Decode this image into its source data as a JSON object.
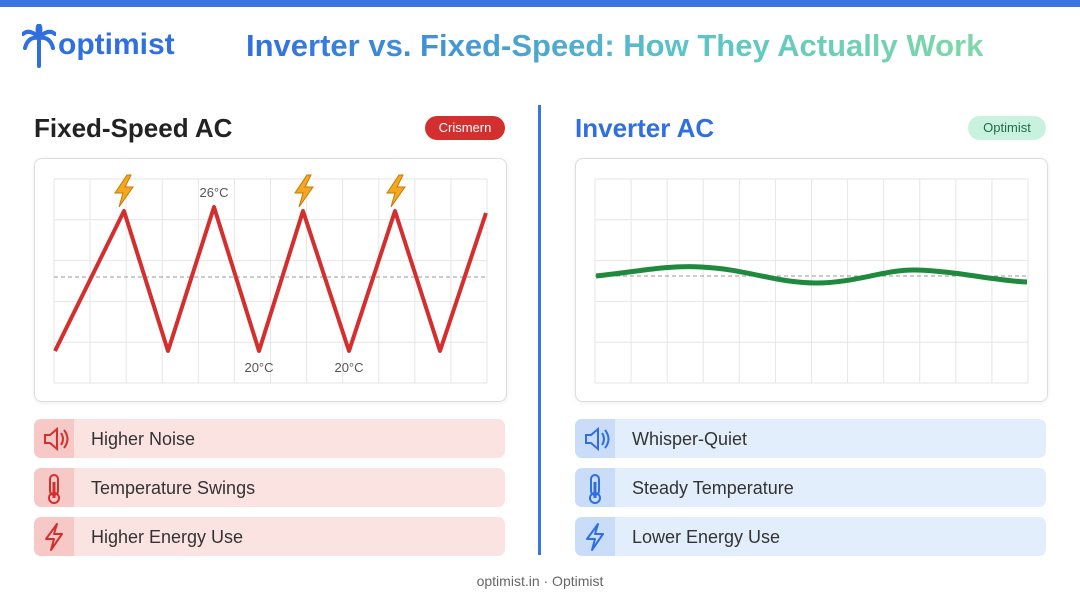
{
  "header": {
    "logo": "optimist",
    "title": "Inverter vs. Fixed-Speed: How They Actually Work"
  },
  "left": {
    "title": "Fixed-Speed AC",
    "badge": "Crismern",
    "chart_labels": [
      "26°C",
      "20°C",
      "20°C"
    ],
    "features": [
      "Higher Noise",
      "Temperature Swings",
      "Higher Energy Use"
    ]
  },
  "right": {
    "title": "Inverter AC",
    "badge": "Optimist",
    "features": [
      "Whisper-Quiet",
      "Steady Temperature",
      "Lower Energy Use"
    ]
  },
  "footer": "optimist.in · Optimist"
}
